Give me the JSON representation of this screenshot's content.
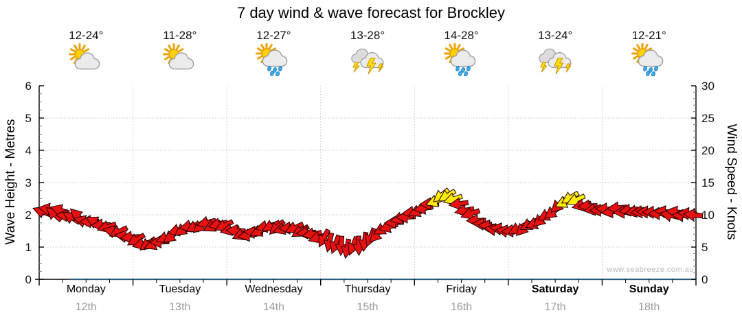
{
  "watermark": "www.seabreeze.com.au",
  "chart_data": {
    "type": "scatter",
    "glyph": "directional-wind-arrows",
    "title": "7 day wind & wave forecast for Brockley",
    "legend": "none",
    "grid": {
      "horizontal_dotted_at_metres": [
        1,
        2,
        3,
        4,
        5
      ],
      "vertical_dotted_at_day_boundaries": true
    },
    "y_left": {
      "label": "Wave Height - Metres",
      "min": 0,
      "max": 6,
      "major_ticks": [
        0,
        1,
        2,
        3,
        4,
        5,
        6
      ],
      "minor_step": 0.25
    },
    "y_right": {
      "label": "Wind Speed - Knots",
      "min": 0,
      "max": 30,
      "major_ticks": [
        0,
        5,
        10,
        15,
        20,
        25,
        30
      ],
      "minor_step": 1
    },
    "days": [
      {
        "name": "Monday",
        "date": "12th",
        "temp": "12-24°",
        "icon": "partly-cloudy",
        "bold": false
      },
      {
        "name": "Tuesday",
        "date": "13th",
        "temp": "11-28°",
        "icon": "partly-cloudy",
        "bold": false
      },
      {
        "name": "Wednesday",
        "date": "14th",
        "temp": "12-27°",
        "icon": "sun-showers",
        "bold": false
      },
      {
        "name": "Thursday",
        "date": "15th",
        "temp": "13-28°",
        "icon": "thunderstorm",
        "bold": false
      },
      {
        "name": "Friday",
        "date": "16th",
        "temp": "14-28°",
        "icon": "sun-showers",
        "bold": false
      },
      {
        "name": "Saturday",
        "date": "17th",
        "temp": "13-24°",
        "icon": "thunderstorm",
        "bold": true
      },
      {
        "name": "Sunday",
        "date": "18th",
        "temp": "12-21°",
        "icon": "sun-showers",
        "bold": true
      }
    ],
    "wind": {
      "unit": "knots",
      "samples_per_day": 16,
      "normal_color": "#e81111",
      "strong_color": "#ffee00",
      "strong_threshold_knots": 12,
      "speeds_knots": [
        10.5,
        10.8,
        10.3,
        10.6,
        10.0,
        9.6,
        9.8,
        9.2,
        8.8,
        9.0,
        8.4,
        8.0,
        7.6,
        7.2,
        6.8,
        6.5,
        6.0,
        5.6,
        5.3,
        5.5,
        5.8,
        6.3,
        6.8,
        7.4,
        7.8,
        8.2,
        8.0,
        8.4,
        8.6,
        8.3,
        8.5,
        8.2,
        7.8,
        7.4,
        7.0,
        6.8,
        7.2,
        7.6,
        8.0,
        8.3,
        8.0,
        7.7,
        8.1,
        7.8,
        7.5,
        7.2,
        6.9,
        6.6,
        6.2,
        5.8,
        5.4,
        5.1,
        4.9,
        5.0,
        5.3,
        5.8,
        6.4,
        7.0,
        7.6,
        8.2,
        8.8,
        9.3,
        9.8,
        10.2,
        10.6,
        11.0,
        11.6,
        12.2,
        12.8,
        13.0,
        12.4,
        11.6,
        10.8,
        10.0,
        9.2,
        8.6,
        8.2,
        7.9,
        7.7,
        7.6,
        7.5,
        7.7,
        8.0,
        8.3,
        8.7,
        9.2,
        9.8,
        10.5,
        11.3,
        12.0,
        12.6,
        12.2,
        11.6,
        11.2,
        10.9,
        10.7,
        10.8,
        10.6,
        10.9,
        10.5,
        10.7,
        10.4,
        10.6,
        10.3,
        10.5,
        10.2,
        10.4,
        10.1,
        10.3,
        10.0,
        10.2,
        9.9
      ],
      "directions_deg_screen": [
        200,
        185,
        215,
        190,
        175,
        205,
        220,
        195,
        180,
        210,
        185,
        170,
        200,
        160,
        190,
        175,
        145,
        160,
        135,
        150,
        170,
        155,
        140,
        165,
        150,
        175,
        160,
        145,
        170,
        155,
        165,
        150,
        160,
        175,
        150,
        165,
        180,
        155,
        170,
        160,
        145,
        170,
        185,
        160,
        150,
        175,
        165,
        155,
        110,
        95,
        105,
        90,
        100,
        115,
        95,
        105,
        120,
        140,
        155,
        165,
        175,
        160,
        170,
        165,
        150,
        165,
        175,
        160,
        145,
        155,
        170,
        180,
        175,
        165,
        180,
        180,
        180,
        180,
        180,
        180,
        170,
        150,
        135,
        155,
        165,
        145,
        160,
        150,
        140,
        155,
        145,
        150,
        160,
        170,
        165,
        175,
        180,
        175,
        180,
        185,
        180,
        175,
        180,
        185,
        180,
        175,
        180,
        185,
        180,
        175,
        180,
        185
      ]
    },
    "wave": {
      "unit": "metres",
      "heights_m": [
        0,
        0,
        0,
        0,
        0,
        0,
        0,
        0
      ],
      "color": "#2a5e7e"
    }
  },
  "colors": {
    "axis": "#000000",
    "tick_label": "#131316",
    "gridline": "#c2c2c2",
    "minor_tick": "#808080",
    "date_label": "#9a9a9a",
    "watermark": "#b8b8b8"
  }
}
